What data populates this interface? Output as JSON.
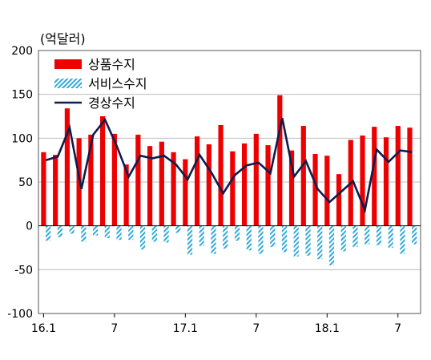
{
  "chart_data": {
    "type": "bar",
    "unit_label": "(억달러)",
    "ylim": [
      -100,
      200
    ],
    "y_ticks": [
      "200",
      "150",
      "100",
      "50",
      "0",
      "-50",
      "-100"
    ],
    "y_tick_values": [
      200,
      150,
      100,
      50,
      0,
      -50,
      -100
    ],
    "x_tick_labels": [
      {
        "index": 0,
        "label": "16.1"
      },
      {
        "index": 6,
        "label": "7"
      },
      {
        "index": 12,
        "label": "17.1"
      },
      {
        "index": 18,
        "label": "7"
      },
      {
        "index": 24,
        "label": "18.1"
      },
      {
        "index": 30,
        "label": "7"
      }
    ],
    "grid": "horizontal",
    "legend_position": "top-left",
    "series": [
      {
        "name": "상품수지",
        "kind": "bar",
        "color": "#ee0000",
        "values": [
          84,
          81,
          134,
          100,
          104,
          125,
          105,
          70,
          104,
          91,
          96,
          84,
          76,
          102,
          93,
          115,
          85,
          94,
          105,
          92,
          149,
          86,
          114,
          82,
          80,
          59,
          98,
          103,
          113,
          101,
          114,
          112
        ]
      },
      {
        "name": "서비스수지",
        "kind": "bar-hatched",
        "color": "#33aad8",
        "values": [
          -17,
          -13,
          -9,
          -18,
          -11,
          -14,
          -16,
          -16,
          -27,
          -18,
          -19,
          -8,
          -33,
          -23,
          -32,
          -26,
          -17,
          -28,
          -32,
          -24,
          -30,
          -35,
          -34,
          -38,
          -45,
          -29,
          -24,
          -21,
          -22,
          -25,
          -32,
          -21
        ]
      },
      {
        "name": "경상수지",
        "kind": "line",
        "color": "#0f1c4d",
        "values": [
          75,
          79,
          112,
          42,
          104,
          121,
          91,
          56,
          80,
          77,
          80,
          70,
          53,
          81,
          61,
          37,
          58,
          69,
          72,
          60,
          123,
          56,
          74,
          42,
          27,
          39,
          51,
          18,
          87,
          73,
          86,
          84
        ]
      }
    ]
  }
}
